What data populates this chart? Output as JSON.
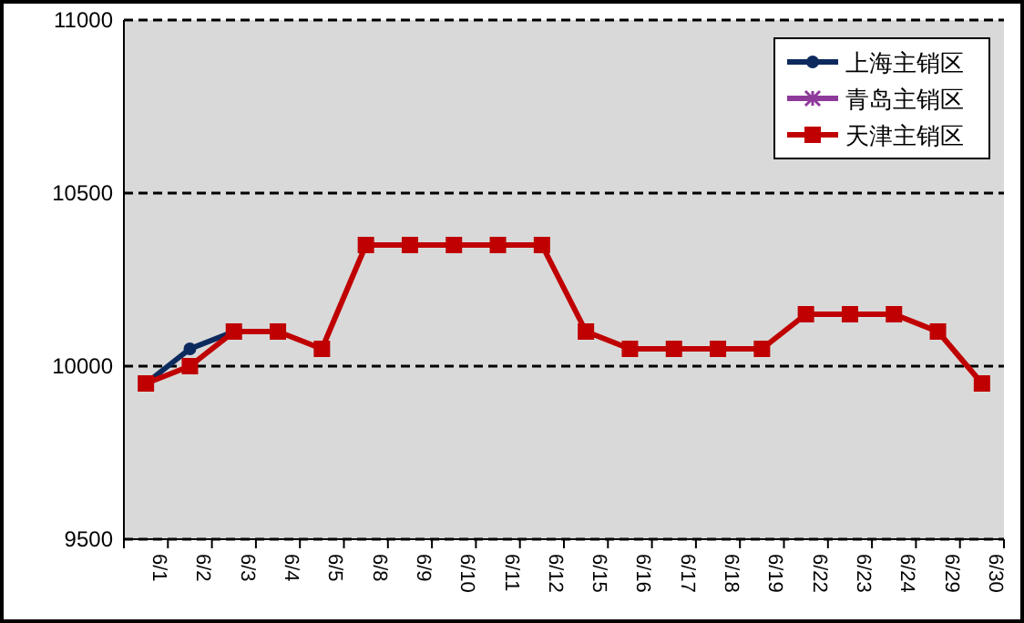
{
  "chart_data": {
    "type": "line",
    "categories": [
      "6/1",
      "6/2",
      "6/3",
      "6/4",
      "6/5",
      "6/8",
      "6/9",
      "6/10",
      "6/11",
      "6/12",
      "6/15",
      "6/16",
      "6/17",
      "6/18",
      "6/19",
      "6/22",
      "6/23",
      "6/24",
      "6/29",
      "6/30"
    ],
    "series": [
      {
        "name": "上海主销区",
        "color": "#0d2a5e",
        "marker": "circle",
        "values": [
          9950,
          10050,
          10100,
          null,
          null,
          null,
          null,
          null,
          null,
          null,
          null,
          null,
          null,
          null,
          null,
          null,
          null,
          null,
          null,
          null
        ]
      },
      {
        "name": "青岛主销区",
        "color": "#8e3a9a",
        "marker": "cross",
        "values": [
          null,
          null,
          null,
          null,
          null,
          null,
          null,
          null,
          null,
          null,
          null,
          null,
          null,
          null,
          null,
          null,
          null,
          null,
          null,
          null
        ]
      },
      {
        "name": "天津主销区",
        "color": "#c00000",
        "marker": "square",
        "values": [
          9950,
          10000,
          10100,
          10100,
          10050,
          10350,
          10350,
          10350,
          10350,
          10350,
          10100,
          10050,
          10050,
          10050,
          10050,
          10150,
          10150,
          10150,
          10100,
          9950
        ]
      }
    ],
    "ylim": [
      9500,
      11000
    ],
    "yticks": [
      9500,
      10000,
      10500,
      11000
    ],
    "grid": "y",
    "legend": "top right"
  }
}
